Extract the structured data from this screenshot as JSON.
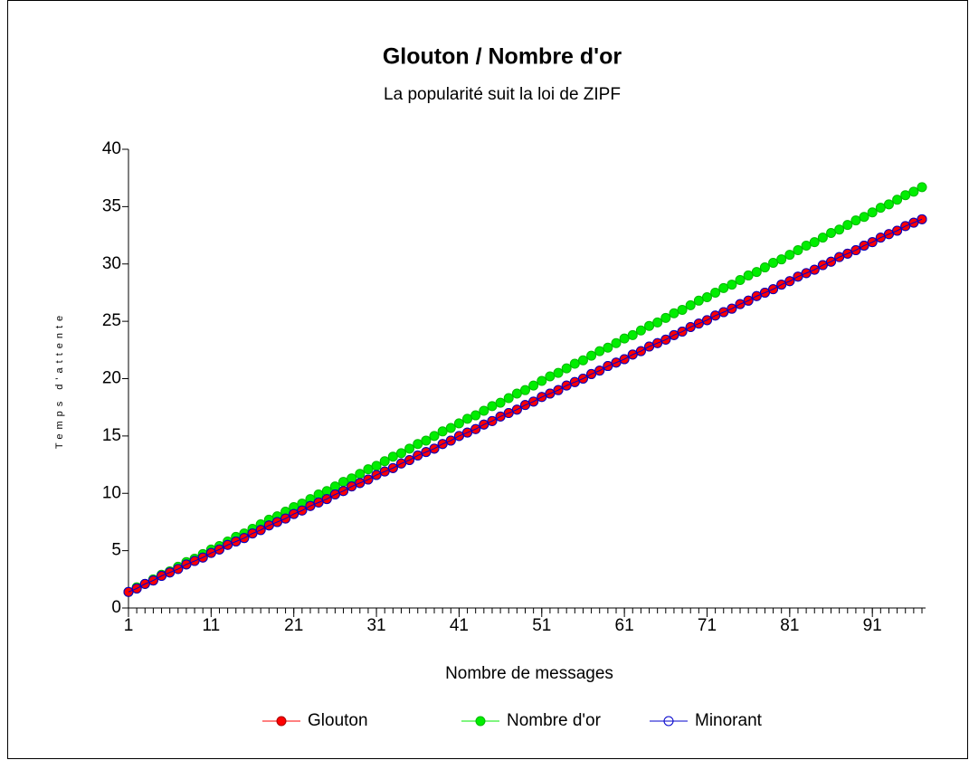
{
  "chart_data": {
    "type": "line",
    "title": "Glouton / Nombre d'or",
    "subtitle": "La popularité suit la loi de ZIPF",
    "x_label": "Nombre de messages",
    "y_label": "Temps d'attente",
    "x": [
      1,
      2,
      3,
      4,
      5,
      6,
      7,
      8,
      9,
      10,
      11,
      12,
      13,
      14,
      15,
      16,
      17,
      18,
      19,
      20,
      21,
      22,
      23,
      24,
      25,
      26,
      27,
      28,
      29,
      30,
      31,
      32,
      33,
      34,
      35,
      36,
      37,
      38,
      39,
      40,
      41,
      42,
      43,
      44,
      45,
      46,
      47,
      48,
      49,
      50,
      51,
      52,
      53,
      54,
      55,
      56,
      57,
      58,
      59,
      60,
      61,
      62,
      63,
      64,
      65,
      66,
      67,
      68,
      69,
      70,
      71,
      72,
      73,
      74,
      75,
      76,
      77,
      78,
      79,
      80,
      81,
      82,
      83,
      84,
      85,
      86,
      87,
      88,
      89,
      90,
      91,
      92,
      93,
      94,
      95,
      96,
      97
    ],
    "series": [
      {
        "name": "Glouton",
        "color": "#ff0000",
        "marker": "filled",
        "values": [
          1.4,
          1.7,
          2.1,
          2.4,
          2.8,
          3.1,
          3.4,
          3.8,
          4.1,
          4.4,
          4.8,
          5.1,
          5.5,
          5.8,
          6.1,
          6.5,
          6.8,
          7.2,
          7.5,
          7.8,
          8.2,
          8.5,
          8.9,
          9.2,
          9.5,
          9.9,
          10.2,
          10.6,
          10.9,
          11.2,
          11.6,
          11.9,
          12.2,
          12.6,
          12.9,
          13.3,
          13.6,
          13.9,
          14.3,
          14.6,
          15.0,
          15.3,
          15.6,
          16.0,
          16.3,
          16.7,
          17.0,
          17.3,
          17.7,
          18.0,
          18.4,
          18.7,
          19.0,
          19.4,
          19.7,
          20.0,
          20.4,
          20.7,
          21.1,
          21.4,
          21.7,
          22.1,
          22.4,
          22.8,
          23.1,
          23.4,
          23.8,
          24.1,
          24.5,
          24.8,
          25.1,
          25.5,
          25.8,
          26.1,
          26.5,
          26.8,
          27.2,
          27.5,
          27.8,
          28.2,
          28.5,
          28.9,
          29.2,
          29.5,
          29.9,
          30.2,
          30.6,
          30.9,
          31.2,
          31.6,
          31.9,
          32.3,
          32.6,
          32.9,
          33.3,
          33.6,
          33.9
        ]
      },
      {
        "name": "Nombre d'or",
        "color": "#00ee00",
        "marker": "filled",
        "values": [
          1.4,
          1.8,
          2.1,
          2.5,
          2.9,
          3.2,
          3.6,
          4.0,
          4.3,
          4.7,
          5.1,
          5.4,
          5.8,
          6.2,
          6.5,
          6.9,
          7.3,
          7.7,
          8.0,
          8.4,
          8.8,
          9.1,
          9.5,
          9.9,
          10.2,
          10.6,
          11.0,
          11.3,
          11.7,
          12.1,
          12.4,
          12.8,
          13.2,
          13.5,
          13.9,
          14.3,
          14.6,
          15.0,
          15.4,
          15.7,
          16.1,
          16.5,
          16.8,
          17.2,
          17.6,
          17.9,
          18.3,
          18.7,
          19.0,
          19.4,
          19.8,
          20.2,
          20.5,
          20.9,
          21.3,
          21.6,
          22.0,
          22.4,
          22.7,
          23.1,
          23.5,
          23.8,
          24.2,
          24.6,
          24.9,
          25.3,
          25.7,
          26.0,
          26.4,
          26.8,
          27.1,
          27.5,
          27.9,
          28.2,
          28.6,
          29.0,
          29.3,
          29.7,
          30.1,
          30.4,
          30.8,
          31.2,
          31.6,
          31.9,
          32.3,
          32.7,
          33.0,
          33.4,
          33.8,
          34.1,
          34.5,
          34.9,
          35.2,
          35.6,
          36.0,
          36.3,
          36.7
        ]
      },
      {
        "name": "Minorant",
        "color": "#0000cc",
        "marker": "open",
        "values": [
          1.4,
          1.7,
          2.1,
          2.4,
          2.8,
          3.1,
          3.4,
          3.8,
          4.1,
          4.4,
          4.8,
          5.1,
          5.5,
          5.8,
          6.1,
          6.5,
          6.8,
          7.2,
          7.5,
          7.8,
          8.2,
          8.5,
          8.9,
          9.2,
          9.5,
          9.9,
          10.2,
          10.6,
          10.9,
          11.2,
          11.6,
          11.9,
          12.2,
          12.6,
          12.9,
          13.3,
          13.6,
          13.9,
          14.3,
          14.6,
          15.0,
          15.3,
          15.6,
          16.0,
          16.3,
          16.7,
          17.0,
          17.3,
          17.7,
          18.0,
          18.4,
          18.7,
          19.0,
          19.4,
          19.7,
          20.0,
          20.4,
          20.7,
          21.1,
          21.4,
          21.7,
          22.1,
          22.4,
          22.8,
          23.1,
          23.4,
          23.8,
          24.1,
          24.5,
          24.8,
          25.1,
          25.5,
          25.8,
          26.1,
          26.5,
          26.8,
          27.2,
          27.5,
          27.8,
          28.2,
          28.5,
          28.9,
          29.2,
          29.5,
          29.9,
          30.2,
          30.6,
          30.9,
          31.2,
          31.6,
          31.9,
          32.3,
          32.6,
          32.9,
          33.3,
          33.6,
          33.9
        ]
      }
    ],
    "xlim": [
      1,
      97
    ],
    "xticks": [
      1,
      11,
      21,
      31,
      41,
      51,
      61,
      71,
      81,
      91
    ],
    "ylim": [
      0,
      40
    ],
    "yticks": [
      0,
      5,
      10,
      15,
      20,
      25,
      30,
      35,
      40
    ],
    "grid": false,
    "legend": "bottom"
  }
}
